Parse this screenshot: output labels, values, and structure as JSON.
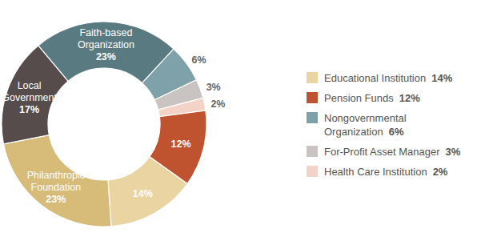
{
  "chart_data": {
    "type": "donut",
    "categories": [
      "Faith-based Organization",
      "Nongovernmental Organization",
      "For-Profit Asset Manager",
      "Health Care Institution",
      "Pension Funds",
      "Educational Institution",
      "Philanthropic Foundation",
      "Local Government"
    ],
    "values": [
      23,
      6,
      3,
      2,
      12,
      14,
      23,
      17
    ],
    "value_labels": [
      "23%",
      "6%",
      "3%",
      "2%",
      "12%",
      "14%",
      "23%",
      "17%"
    ],
    "colors": [
      "#5a7a82",
      "#7fa2aa",
      "#c9c4c1",
      "#f3d3c8",
      "#c0532f",
      "#ead5a2",
      "#d7bb79",
      "#564c4b"
    ],
    "data_labels": true,
    "legend": "right"
  }
}
